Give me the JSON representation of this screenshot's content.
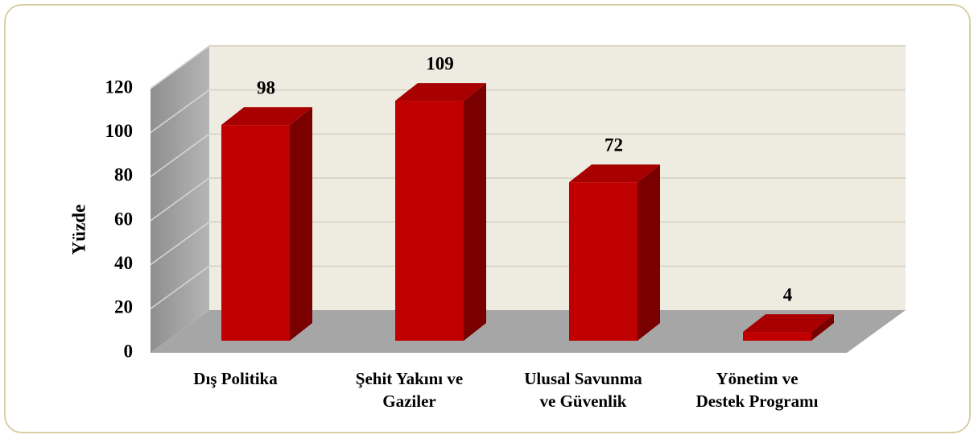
{
  "chart_data": {
    "type": "bar3d",
    "categories": [
      "Dış Politika",
      "Şehit Yakını ve Gaziler",
      "Ulusal Savunma ve Güvenlik",
      "Yönetim ve Destek Programı"
    ],
    "values": [
      98,
      109,
      72,
      4
    ],
    "color": "#c00000",
    "ylabel": "Yüzde",
    "ylim": [
      0,
      120
    ],
    "yticks": [
      0,
      20,
      40,
      60,
      80,
      100,
      120
    ],
    "grid": true
  }
}
